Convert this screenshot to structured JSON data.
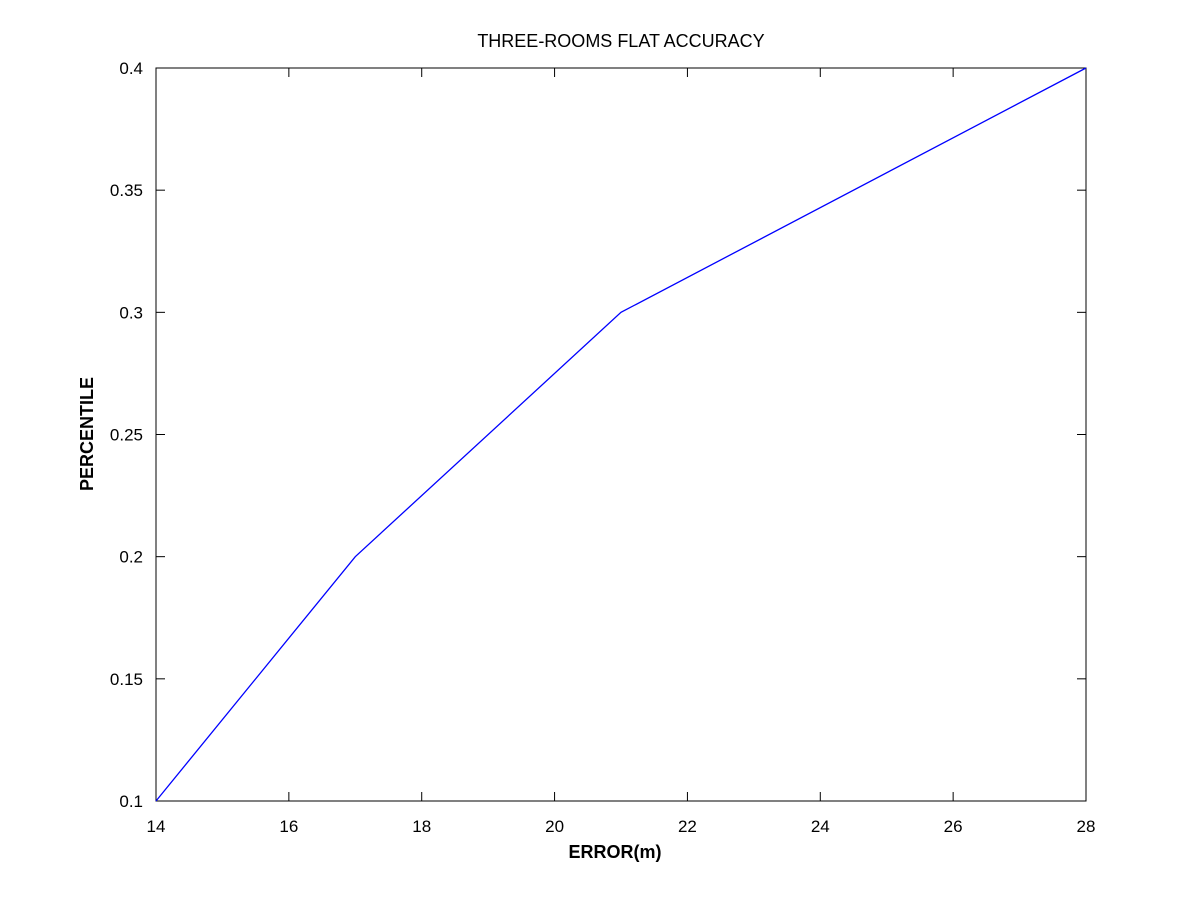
{
  "chart_data": {
    "type": "line",
    "title": "THREE-ROOMS FLAT ACCURACY",
    "xlabel": "ERROR(m)",
    "ylabel": "PERCENTILE",
    "xlim": [
      14,
      28
    ],
    "ylim": [
      0.1,
      0.4
    ],
    "xticks": [
      14,
      16,
      18,
      20,
      22,
      24,
      26,
      28
    ],
    "yticks": [
      0.1,
      0.15,
      0.2,
      0.25,
      0.3,
      0.35,
      0.4
    ],
    "xtick_labels": [
      "14",
      "16",
      "18",
      "20",
      "22",
      "24",
      "26",
      "28"
    ],
    "ytick_labels": [
      "0.1",
      "0.15",
      "0.2",
      "0.25",
      "0.3",
      "0.35",
      "0.4"
    ],
    "grid": false,
    "series": [
      {
        "color": "#0000ff",
        "x": [
          14,
          17,
          21,
          28
        ],
        "y": [
          0.1,
          0.2,
          0.3,
          0.4
        ]
      }
    ]
  }
}
